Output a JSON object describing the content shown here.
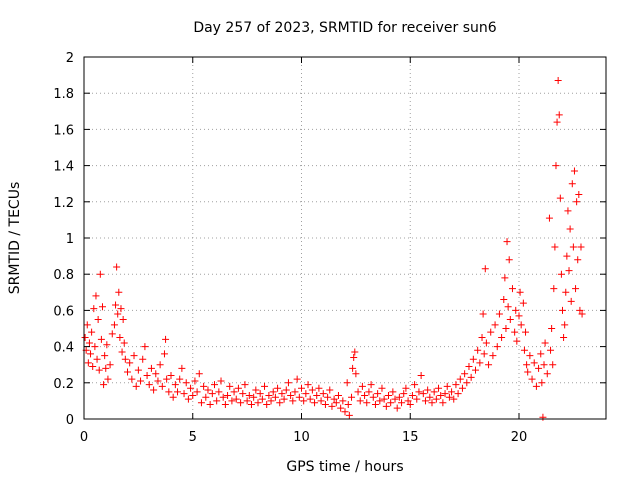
{
  "chart_data": {
    "type": "scatter",
    "title": "Day 257 of 2023, SRMTID for receiver sun6",
    "xlabel": "GPS time / hours",
    "ylabel": "SRMTID / TECUs",
    "xlim": [
      0,
      24
    ],
    "ylim": [
      0,
      2
    ],
    "xticks": [
      0,
      5,
      10,
      15,
      20
    ],
    "xtick_labels": [
      "0",
      "5",
      "10",
      "15",
      "20"
    ],
    "yticks": [
      0,
      0.2,
      0.4,
      0.6,
      0.8,
      1,
      1.2,
      1.4,
      1.6,
      1.8,
      2
    ],
    "ytick_labels": [
      "0",
      "0.2",
      "0.4",
      "0.6",
      "0.8",
      "1",
      "1.2",
      "1.4",
      "1.6",
      "1.8",
      "2"
    ],
    "grid": true,
    "marker": "+",
    "color": "#ff0000",
    "series": [
      {
        "name": "SRMTID",
        "points": [
          [
            0.05,
            0.45
          ],
          [
            0.1,
            0.38
          ],
          [
            0.15,
            0.52
          ],
          [
            0.2,
            0.31
          ],
          [
            0.25,
            0.42
          ],
          [
            0.3,
            0.36
          ],
          [
            0.35,
            0.48
          ],
          [
            0.4,
            0.29
          ],
          [
            0.45,
            0.61
          ],
          [
            0.5,
            0.4
          ],
          [
            0.55,
            0.68
          ],
          [
            0.6,
            0.33
          ],
          [
            0.65,
            0.55
          ],
          [
            0.7,
            0.27
          ],
          [
            0.75,
            0.8
          ],
          [
            0.8,
            0.44
          ],
          [
            0.85,
            0.62
          ],
          [
            0.9,
            0.19
          ],
          [
            0.95,
            0.35
          ],
          [
            1.0,
            0.28
          ],
          [
            1.05,
            0.41
          ],
          [
            1.1,
            0.22
          ],
          [
            1.2,
            0.3
          ],
          [
            1.3,
            0.47
          ],
          [
            1.4,
            0.52
          ],
          [
            1.45,
            0.63
          ],
          [
            1.5,
            0.84
          ],
          [
            1.55,
            0.58
          ],
          [
            1.6,
            0.7
          ],
          [
            1.65,
            0.45
          ],
          [
            1.7,
            0.61
          ],
          [
            1.75,
            0.37
          ],
          [
            1.8,
            0.55
          ],
          [
            1.85,
            0.42
          ],
          [
            1.9,
            0.33
          ],
          [
            2.0,
            0.26
          ],
          [
            2.1,
            0.31
          ],
          [
            2.2,
            0.22
          ],
          [
            2.3,
            0.35
          ],
          [
            2.4,
            0.18
          ],
          [
            2.5,
            0.27
          ],
          [
            2.6,
            0.21
          ],
          [
            2.7,
            0.33
          ],
          [
            2.8,
            0.4
          ],
          [
            2.9,
            0.24
          ],
          [
            3.0,
            0.19
          ],
          [
            3.1,
            0.28
          ],
          [
            3.2,
            0.16
          ],
          [
            3.3,
            0.25
          ],
          [
            3.4,
            0.21
          ],
          [
            3.5,
            0.3
          ],
          [
            3.6,
            0.18
          ],
          [
            3.7,
            0.36
          ],
          [
            3.75,
            0.44
          ],
          [
            3.8,
            0.22
          ],
          [
            3.9,
            0.15
          ],
          [
            4.0,
            0.24
          ],
          [
            4.1,
            0.12
          ],
          [
            4.2,
            0.19
          ],
          [
            4.3,
            0.15
          ],
          [
            4.4,
            0.22
          ],
          [
            4.5,
            0.28
          ],
          [
            4.6,
            0.14
          ],
          [
            4.7,
            0.2
          ],
          [
            4.8,
            0.11
          ],
          [
            4.9,
            0.17
          ],
          [
            5.0,
            0.13
          ],
          [
            5.1,
            0.21
          ],
          [
            5.2,
            0.15
          ],
          [
            5.3,
            0.25
          ],
          [
            5.4,
            0.09
          ],
          [
            5.5,
            0.18
          ],
          [
            5.6,
            0.12
          ],
          [
            5.7,
            0.16
          ],
          [
            5.8,
            0.08
          ],
          [
            5.9,
            0.14
          ],
          [
            6.0,
            0.19
          ],
          [
            6.1,
            0.1
          ],
          [
            6.2,
            0.15
          ],
          [
            6.3,
            0.21
          ],
          [
            6.4,
            0.12
          ],
          [
            6.5,
            0.08
          ],
          [
            6.6,
            0.13
          ],
          [
            6.7,
            0.18
          ],
          [
            6.8,
            0.1
          ],
          [
            6.9,
            0.15
          ],
          [
            7.0,
            0.11
          ],
          [
            7.1,
            0.17
          ],
          [
            7.2,
            0.09
          ],
          [
            7.3,
            0.14
          ],
          [
            7.4,
            0.19
          ],
          [
            7.5,
            0.1
          ],
          [
            7.6,
            0.13
          ],
          [
            7.7,
            0.08
          ],
          [
            7.8,
            0.12
          ],
          [
            7.9,
            0.16
          ],
          [
            8.0,
            0.09
          ],
          [
            8.1,
            0.14
          ],
          [
            8.2,
            0.11
          ],
          [
            8.3,
            0.18
          ],
          [
            8.4,
            0.08
          ],
          [
            8.5,
            0.13
          ],
          [
            8.6,
            0.1
          ],
          [
            8.7,
            0.15
          ],
          [
            8.8,
            0.12
          ],
          [
            8.9,
            0.17
          ],
          [
            9.0,
            0.09
          ],
          [
            9.1,
            0.14
          ],
          [
            9.2,
            0.11
          ],
          [
            9.3,
            0.16
          ],
          [
            9.4,
            0.2
          ],
          [
            9.5,
            0.13
          ],
          [
            9.6,
            0.1
          ],
          [
            9.7,
            0.15
          ],
          [
            9.8,
            0.22
          ],
          [
            9.9,
            0.12
          ],
          [
            10.0,
            0.17
          ],
          [
            10.1,
            0.1
          ],
          [
            10.2,
            0.14
          ],
          [
            10.3,
            0.19
          ],
          [
            10.4,
            0.11
          ],
          [
            10.5,
            0.16
          ],
          [
            10.6,
            0.09
          ],
          [
            10.7,
            0.13
          ],
          [
            10.8,
            0.17
          ],
          [
            10.9,
            0.1
          ],
          [
            11.0,
            0.14
          ],
          [
            11.1,
            0.08
          ],
          [
            11.2,
            0.12
          ],
          [
            11.3,
            0.16
          ],
          [
            11.4,
            0.07
          ],
          [
            11.5,
            0.11
          ],
          [
            11.6,
            0.09
          ],
          [
            11.7,
            0.13
          ],
          [
            11.8,
            0.06
          ],
          [
            11.9,
            0.1
          ],
          [
            12.0,
            0.04
          ],
          [
            12.1,
            0.2
          ],
          [
            12.15,
            0.08
          ],
          [
            12.2,
            0.02
          ],
          [
            12.3,
            0.12
          ],
          [
            12.35,
            0.28
          ],
          [
            12.4,
            0.34
          ],
          [
            12.45,
            0.37
          ],
          [
            12.5,
            0.25
          ],
          [
            12.6,
            0.15
          ],
          [
            12.7,
            0.1
          ],
          [
            12.8,
            0.18
          ],
          [
            12.9,
            0.13
          ],
          [
            13.0,
            0.09
          ],
          [
            13.1,
            0.15
          ],
          [
            13.2,
            0.19
          ],
          [
            13.3,
            0.12
          ],
          [
            13.4,
            0.08
          ],
          [
            13.5,
            0.14
          ],
          [
            13.6,
            0.1
          ],
          [
            13.7,
            0.17
          ],
          [
            13.8,
            0.11
          ],
          [
            13.9,
            0.07
          ],
          [
            14.0,
            0.13
          ],
          [
            14.1,
            0.09
          ],
          [
            14.2,
            0.15
          ],
          [
            14.3,
            0.11
          ],
          [
            14.4,
            0.06
          ],
          [
            14.5,
            0.12
          ],
          [
            14.6,
            0.09
          ],
          [
            14.7,
            0.14
          ],
          [
            14.8,
            0.17
          ],
          [
            14.9,
            0.1
          ],
          [
            15.0,
            0.08
          ],
          [
            15.1,
            0.13
          ],
          [
            15.2,
            0.19
          ],
          [
            15.3,
            0.11
          ],
          [
            15.4,
            0.15
          ],
          [
            15.5,
            0.24
          ],
          [
            15.6,
            0.14
          ],
          [
            15.7,
            0.1
          ],
          [
            15.8,
            0.16
          ],
          [
            15.9,
            0.12
          ],
          [
            16.0,
            0.09
          ],
          [
            16.1,
            0.15
          ],
          [
            16.2,
            0.11
          ],
          [
            16.3,
            0.17
          ],
          [
            16.4,
            0.13
          ],
          [
            16.5,
            0.09
          ],
          [
            16.6,
            0.14
          ],
          [
            16.7,
            0.18
          ],
          [
            16.8,
            0.12
          ],
          [
            16.9,
            0.15
          ],
          [
            17.0,
            0.11
          ],
          [
            17.1,
            0.19
          ],
          [
            17.2,
            0.14
          ],
          [
            17.3,
            0.22
          ],
          [
            17.4,
            0.17
          ],
          [
            17.5,
            0.25
          ],
          [
            17.6,
            0.2
          ],
          [
            17.7,
            0.29
          ],
          [
            17.8,
            0.23
          ],
          [
            17.9,
            0.33
          ],
          [
            18.0,
            0.27
          ],
          [
            18.1,
            0.38
          ],
          [
            18.2,
            0.31
          ],
          [
            18.3,
            0.45
          ],
          [
            18.35,
            0.58
          ],
          [
            18.4,
            0.36
          ],
          [
            18.45,
            0.83
          ],
          [
            18.5,
            0.42
          ],
          [
            18.6,
            0.3
          ],
          [
            18.7,
            0.48
          ],
          [
            18.8,
            0.35
          ],
          [
            18.9,
            0.52
          ],
          [
            19.0,
            0.4
          ],
          [
            19.1,
            0.58
          ],
          [
            19.2,
            0.45
          ],
          [
            19.3,
            0.66
          ],
          [
            19.35,
            0.78
          ],
          [
            19.4,
            0.5
          ],
          [
            19.45,
            0.98
          ],
          [
            19.5,
            0.62
          ],
          [
            19.55,
            0.88
          ],
          [
            19.6,
            0.55
          ],
          [
            19.7,
            0.72
          ],
          [
            19.8,
            0.48
          ],
          [
            19.85,
            0.6
          ],
          [
            19.9,
            0.43
          ],
          [
            20.0,
            0.57
          ],
          [
            20.05,
            0.7
          ],
          [
            20.1,
            0.52
          ],
          [
            20.2,
            0.64
          ],
          [
            20.25,
            0.38
          ],
          [
            20.3,
            0.48
          ],
          [
            20.35,
            0.3
          ],
          [
            20.4,
            0.26
          ],
          [
            20.5,
            0.35
          ],
          [
            20.6,
            0.22
          ],
          [
            20.7,
            0.31
          ],
          [
            20.8,
            0.18
          ],
          [
            20.9,
            0.28
          ],
          [
            21.0,
            0.36
          ],
          [
            21.05,
            0.2
          ],
          [
            21.1,
            0.01
          ],
          [
            21.15,
            0.3
          ],
          [
            21.2,
            0.42
          ],
          [
            21.3,
            0.25
          ],
          [
            21.4,
            1.11
          ],
          [
            21.45,
            0.38
          ],
          [
            21.5,
            0.5
          ],
          [
            21.55,
            0.3
          ],
          [
            21.6,
            0.72
          ],
          [
            21.65,
            0.95
          ],
          [
            21.7,
            1.4
          ],
          [
            21.75,
            1.64
          ],
          [
            21.8,
            1.87
          ],
          [
            21.85,
            1.68
          ],
          [
            21.9,
            1.22
          ],
          [
            21.95,
            0.8
          ],
          [
            22.0,
            0.6
          ],
          [
            22.05,
            0.45
          ],
          [
            22.1,
            0.52
          ],
          [
            22.15,
            0.7
          ],
          [
            22.2,
            0.9
          ],
          [
            22.25,
            1.15
          ],
          [
            22.3,
            0.82
          ],
          [
            22.35,
            1.05
          ],
          [
            22.4,
            0.65
          ],
          [
            22.45,
            1.3
          ],
          [
            22.5,
            0.95
          ],
          [
            22.55,
            1.37
          ],
          [
            22.6,
            0.72
          ],
          [
            22.65,
            1.2
          ],
          [
            22.7,
            0.88
          ],
          [
            22.75,
            1.24
          ],
          [
            22.8,
            0.6
          ],
          [
            22.85,
            0.95
          ],
          [
            22.9,
            0.58
          ]
        ]
      }
    ]
  }
}
